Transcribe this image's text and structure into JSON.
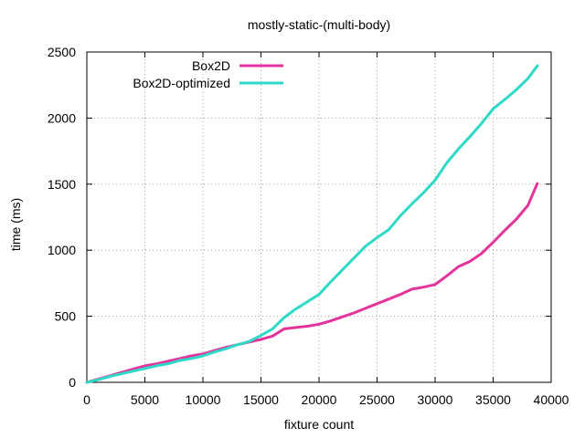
{
  "chart_data": {
    "type": "line",
    "title": "mostly-static-(multi-body)",
    "xlabel": "fixture count",
    "ylabel": "time (ms)",
    "xlim": [
      0,
      40000
    ],
    "ylim": [
      0,
      2500
    ],
    "x_ticks": [
      0,
      5000,
      10000,
      15000,
      20000,
      25000,
      30000,
      35000,
      40000
    ],
    "y_ticks": [
      0,
      500,
      1000,
      1500,
      2000,
      2500
    ],
    "grid": true,
    "legend_position": "top-center",
    "series": [
      {
        "name": "Box2D",
        "color": "#e4349c",
        "x": [
          0,
          1000,
          2000,
          3000,
          4000,
          5000,
          6000,
          7000,
          8000,
          9000,
          10000,
          11000,
          12000,
          13000,
          14000,
          15000,
          16000,
          17000,
          18000,
          19000,
          20000,
          21000,
          22000,
          23000,
          24000,
          25000,
          26000,
          27000,
          28000,
          29000,
          30000,
          31000,
          32000,
          33000,
          34000,
          35000,
          36000,
          37000,
          38000,
          38800
        ],
        "values": [
          0,
          25,
          50,
          75,
          100,
          125,
          140,
          160,
          180,
          200,
          215,
          240,
          265,
          285,
          305,
          325,
          350,
          405,
          415,
          425,
          440,
          465,
          495,
          525,
          560,
          595,
          630,
          665,
          705,
          720,
          740,
          805,
          875,
          915,
          975,
          1060,
          1150,
          1235,
          1340,
          1505
        ]
      },
      {
        "name": "Box2D-optimized",
        "color": "#2fd9c8",
        "x": [
          0,
          1000,
          2000,
          3000,
          4000,
          5000,
          6000,
          7000,
          8000,
          9000,
          10000,
          11000,
          12000,
          13000,
          14000,
          15000,
          16000,
          17000,
          18000,
          19000,
          20000,
          21000,
          22000,
          23000,
          24000,
          25000,
          26000,
          27000,
          28000,
          29000,
          30000,
          31000,
          32000,
          33000,
          34000,
          35000,
          36000,
          37000,
          38000,
          38800
        ],
        "values": [
          0,
          20,
          45,
          65,
          85,
          105,
          125,
          140,
          165,
          180,
          200,
          230,
          255,
          285,
          310,
          355,
          405,
          490,
          555,
          610,
          665,
          760,
          850,
          940,
          1030,
          1095,
          1155,
          1260,
          1350,
          1435,
          1530,
          1660,
          1765,
          1860,
          1960,
          2070,
          2140,
          2215,
          2300,
          2395
        ]
      }
    ]
  }
}
